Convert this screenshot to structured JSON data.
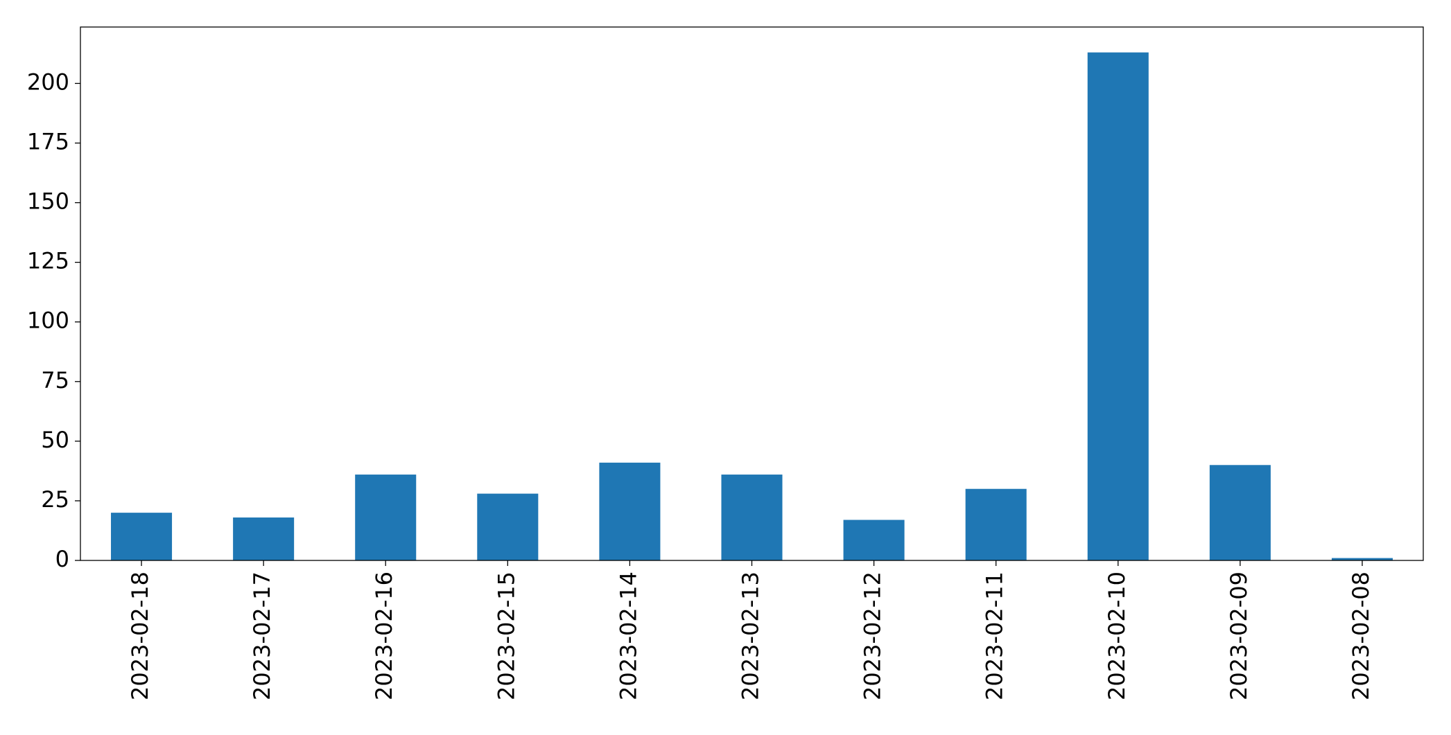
{
  "chart_data": {
    "type": "bar",
    "categories": [
      "2023-02-18",
      "2023-02-17",
      "2023-02-16",
      "2023-02-15",
      "2023-02-14",
      "2023-02-13",
      "2023-02-12",
      "2023-02-11",
      "2023-02-10",
      "2023-02-09",
      "2023-02-08"
    ],
    "values": [
      20,
      18,
      36,
      28,
      41,
      36,
      17,
      30,
      213,
      40,
      1
    ],
    "color": "#1f77b4",
    "ylim": [
      0,
      223.65
    ],
    "yticks": [
      0,
      25,
      50,
      75,
      100,
      125,
      150,
      175,
      200
    ],
    "grid": false
  }
}
